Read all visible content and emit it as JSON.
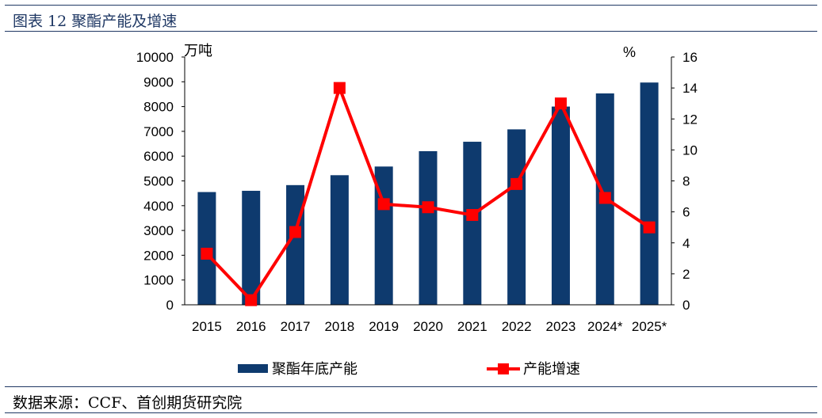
{
  "figure": {
    "title": "图表 12 聚酯产能及增速",
    "source": "数据来源：CCF、首创期货研究院"
  },
  "colors": {
    "bar": "#0e3a6e",
    "line": "#ff0000",
    "frame": "#1f3864"
  },
  "chart_data": {
    "type": "bar",
    "categories": [
      "2015",
      "2016",
      "2017",
      "2018",
      "2019",
      "2020",
      "2021",
      "2022",
      "2023",
      "2024*",
      "2025*"
    ],
    "series": [
      {
        "name": "聚酯年底产能",
        "type": "bar",
        "axis": "left",
        "values": [
          4550,
          4600,
          4830,
          5230,
          5580,
          6200,
          6580,
          7080,
          8000,
          8530,
          8970
        ]
      },
      {
        "name": "产能增速",
        "type": "line",
        "axis": "right",
        "values": [
          3.3,
          0.3,
          4.7,
          14.0,
          6.5,
          6.3,
          5.8,
          7.8,
          13.0,
          6.9,
          5.0
        ]
      }
    ],
    "ylabel_left": "万吨",
    "ylabel_right": "%",
    "ylim_left": [
      0,
      10000
    ],
    "ylim_right": [
      0,
      16
    ],
    "yticks_left": [
      "0",
      "1000",
      "2000",
      "3000",
      "4000",
      "5000",
      "6000",
      "7000",
      "8000",
      "9000",
      "10000"
    ],
    "yticks_right": [
      "0",
      "2",
      "4",
      "6",
      "8",
      "10",
      "12",
      "14",
      "16"
    ],
    "grid": false,
    "legend_position": "bottom"
  }
}
